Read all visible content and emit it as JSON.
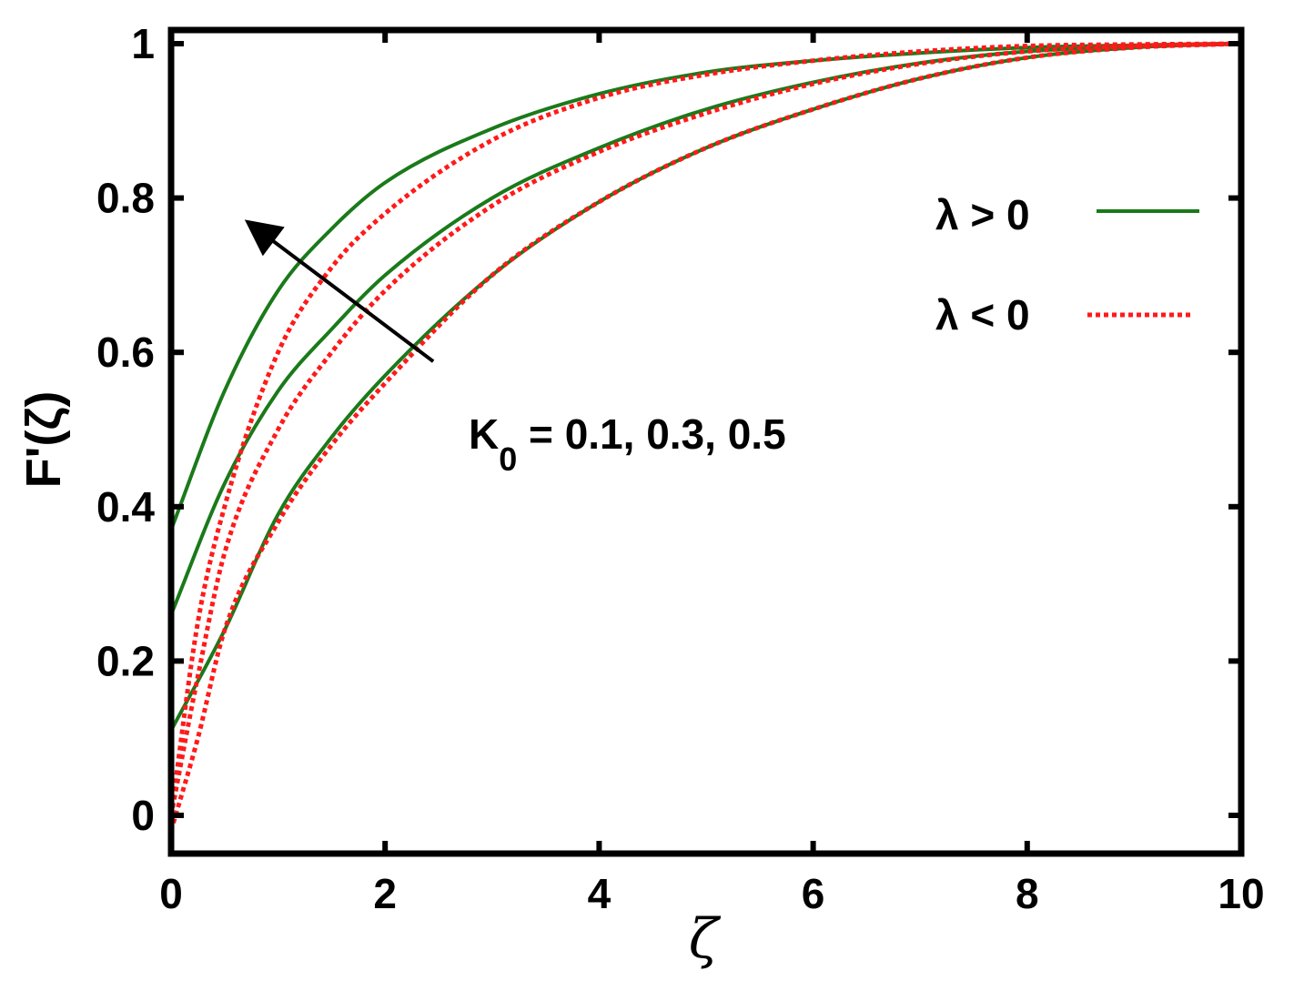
{
  "chart_data": {
    "type": "line",
    "title": "",
    "xlabel": "ζ",
    "ylabel": "F'(ζ)",
    "xlim": [
      0,
      10
    ],
    "ylim": [
      -0.05,
      1
    ],
    "xticks": [
      0,
      2,
      4,
      6,
      8,
      10
    ],
    "yticks": [
      0,
      0.2,
      0.4,
      0.6,
      0.8,
      1
    ],
    "xtick_labels": [
      "0",
      "2",
      "4",
      "6",
      "8",
      "10"
    ],
    "ytick_labels": [
      "0",
      "0.2",
      "0.4",
      "0.6",
      "0.8",
      "1"
    ],
    "grid": false,
    "legend_position": "top-right",
    "legend": [
      {
        "label": "λ > 0",
        "style": "solid",
        "color": "#1a7a1a"
      },
      {
        "label": "λ < 0",
        "style": "dotted",
        "color": "#ff1a1a"
      }
    ],
    "series": [
      {
        "group": "positive",
        "style": "solid",
        "color": "#1a7a1a",
        "x": [
          0,
          0.5,
          1,
          1.5,
          2,
          3,
          4,
          5,
          6,
          7,
          8,
          9,
          10
        ],
        "y": [
          0.37,
          0.55,
          0.68,
          0.76,
          0.82,
          0.89,
          0.935,
          0.963,
          0.978,
          0.988,
          0.995,
          0.998,
          1.0
        ]
      },
      {
        "group": "positive",
        "style": "solid",
        "color": "#1a7a1a",
        "x": [
          0,
          0.5,
          1,
          1.5,
          2,
          3,
          4,
          5,
          6,
          7,
          8,
          9,
          10
        ],
        "y": [
          0.26,
          0.43,
          0.55,
          0.63,
          0.7,
          0.8,
          0.865,
          0.915,
          0.95,
          0.975,
          0.99,
          0.997,
          1.0
        ]
      },
      {
        "group": "positive",
        "style": "solid",
        "color": "#1a7a1a",
        "x": [
          0,
          0.5,
          1,
          1.5,
          2,
          3,
          4,
          5,
          6,
          7,
          8,
          9,
          10
        ],
        "y": [
          0.11,
          0.24,
          0.39,
          0.49,
          0.57,
          0.7,
          0.795,
          0.865,
          0.915,
          0.955,
          0.982,
          0.995,
          1.0
        ]
      },
      {
        "group": "negative",
        "style": "dotted",
        "color": "#ff1a1a",
        "x": [
          0,
          0.25,
          0.5,
          1,
          1.5,
          2,
          3,
          4,
          5,
          6,
          7,
          8,
          9,
          10
        ],
        "y": [
          0.0,
          0.25,
          0.4,
          0.6,
          0.71,
          0.78,
          0.875,
          0.93,
          0.96,
          0.978,
          0.99,
          0.997,
          0.999,
          1.0
        ]
      },
      {
        "group": "negative",
        "style": "dotted",
        "color": "#ff1a1a",
        "x": [
          0,
          0.25,
          0.5,
          1,
          1.5,
          2,
          3,
          4,
          5,
          6,
          7,
          8,
          9,
          10
        ],
        "y": [
          0.0,
          0.18,
          0.34,
          0.5,
          0.6,
          0.68,
          0.79,
          0.86,
          0.91,
          0.948,
          0.974,
          0.99,
          0.997,
          1.0
        ]
      },
      {
        "group": "negative",
        "style": "dotted",
        "color": "#ff1a1a",
        "x": [
          0,
          0.25,
          0.5,
          1,
          1.5,
          2,
          3,
          4,
          5,
          6,
          7,
          8,
          9,
          10
        ],
        "y": [
          -0.02,
          0.1,
          0.24,
          0.38,
          0.48,
          0.56,
          0.7,
          0.795,
          0.865,
          0.915,
          0.955,
          0.982,
          0.995,
          1.0
        ]
      }
    ],
    "annotation": {
      "text_main": "K",
      "text_sub": "0",
      "text_rest": " = 0.1, 0.3, 0.5",
      "arrow_from": [
        2.45,
        0.6
      ],
      "arrow_to": [
        0.65,
        0.78
      ]
    }
  }
}
